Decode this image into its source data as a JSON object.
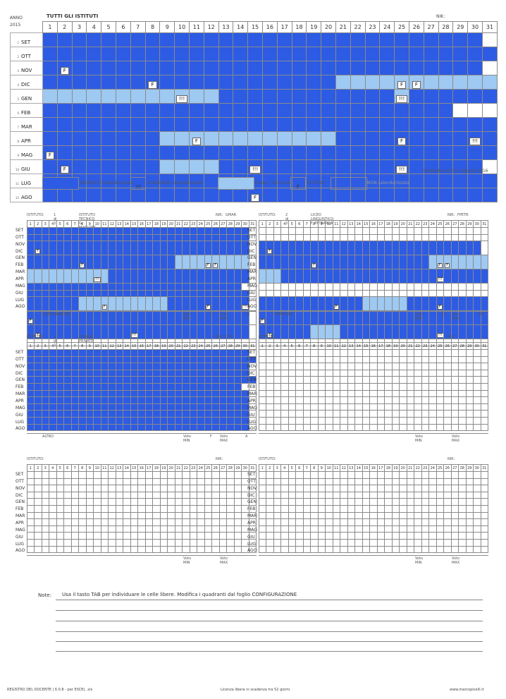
{
  "main": {
    "anno_label": "ANNO",
    "anno_year": "2015",
    "title": "TUTTI GLI ISTITUTI",
    "nik_label": "NIK:",
    "day_headers": [
      "1",
      "2",
      "3",
      "4",
      "5",
      "6",
      "7",
      "8",
      "9",
      "10",
      "11",
      "12",
      "13",
      "14",
      "15",
      "16",
      "17",
      "18",
      "19",
      "20",
      "21",
      "22",
      "23",
      "24",
      "25",
      "26",
      "27",
      "28",
      "29",
      "30",
      "31"
    ],
    "months": [
      {
        "num": "1",
        "name": "SET"
      },
      {
        "num": "2",
        "name": "OTT"
      },
      {
        "num": "3",
        "name": "NOV"
      },
      {
        "num": "4",
        "name": "DIC"
      },
      {
        "num": "5",
        "name": "GEN"
      },
      {
        "num": "6",
        "name": "FEB"
      },
      {
        "num": "7",
        "name": "MAR"
      },
      {
        "num": "8",
        "name": "APR"
      },
      {
        "num": "9",
        "name": "MAG"
      },
      {
        "num": "10",
        "name": "GIU"
      },
      {
        "num": "11",
        "name": "LUG"
      },
      {
        "num": "12",
        "name": "AGO"
      }
    ],
    "rows": [
      "1111111111111111111111111111110",
      "1111111111111111111111111111111",
      "1111111111111111111111111111110",
      "1111111111111111111122222222222",
      "2222222222221111111111112111111",
      "1111111111111111111111111111000",
      "1111111111111111111111111111111",
      "1111111122222222222211111111111",
      "1111111111111111111111111111111",
      "1111111122221111111111111111110",
      "1111111111111111111111111111111",
      "1111111111111111111111111111111"
    ],
    "marks": [
      {
        "row": 2,
        "day": 2,
        "text": "F"
      },
      {
        "row": 3,
        "day": 8,
        "text": "F"
      },
      {
        "row": 3,
        "day": 25,
        "text": "F"
      },
      {
        "row": 3,
        "day": 26,
        "text": "F"
      },
      {
        "row": 4,
        "day": 10,
        "text": "!!!"
      },
      {
        "row": 4,
        "day": 25,
        "text": "!!!"
      },
      {
        "row": 7,
        "day": 11,
        "text": "F"
      },
      {
        "row": 7,
        "day": 25,
        "text": "F"
      },
      {
        "row": 7,
        "day": 30,
        "text": "!!!"
      },
      {
        "row": 8,
        "day": 1,
        "text": "F"
      },
      {
        "row": 9,
        "day": 2,
        "text": "F"
      },
      {
        "row": 9,
        "day": 15,
        "text": "!!!"
      },
      {
        "row": 9,
        "day": 25,
        "text": "!!!"
      },
      {
        "row": 11,
        "day": 15,
        "text": "F"
      }
    ],
    "period": "Settembre 2015 / Agosto 2016"
  },
  "legend": [
    {
      "key": "INCARICO calendarizzato",
      "color": "#2d5be3",
      "mark": ""
    },
    {
      "key": "SCADENZA calendarizzata",
      "color": "#ffffff",
      "mark": "!!!"
    },
    {
      "key": "Pausa / Chiusura",
      "color": "#9ec9f2",
      "mark": ""
    },
    {
      "key": "FESTIVO",
      "color": "#ffffff",
      "mark": "F"
    },
    {
      "key": "NON calendarizzato",
      "color": "#ffffff",
      "mark": ""
    }
  ],
  "month_names": [
    "SET",
    "OTT",
    "NOV",
    "DIC",
    "GEN",
    "FEB",
    "MAR",
    "APR",
    "MAG",
    "GIU",
    "LUG",
    "AGO"
  ],
  "panels": [
    {
      "istituto_label": "ISTITUTO:",
      "index": "1 di 3",
      "name": "ISTITUTO TECNICO G. MARCONI",
      "nik_label": "NIK:",
      "nik": "GMAR",
      "period_type": "QUADRIMESTRE",
      "voto_min_label": "Voto MIN",
      "voto_min": "1",
      "voto_max_label": "Voto MAX",
      "voto_max": "10",
      "rows": [
        "1111111111111111111111111111110",
        "1111111111111111111111111111110",
        "1111111111111111111111111111110",
        "1111111111111111111122222222220",
        "2222222222211111111111111111110",
        "1111111111111111111111111111100",
        "1111111111111111111111111111110",
        "1111111222222222222111111111110",
        "1111111111111111111111111111110",
        "1111111111111111111111111111110",
        "0000000000000000000000000000000",
        "0000000000000000000000000000000"
      ],
      "marks": [
        {
          "row": 2,
          "day": 2,
          "text": "F"
        },
        {
          "row": 3,
          "day": 8,
          "text": "F"
        },
        {
          "row": 3,
          "day": 25,
          "text": "F"
        },
        {
          "row": 3,
          "day": 26,
          "text": "F"
        },
        {
          "row": 4,
          "day": 10,
          "text": "!!!"
        },
        {
          "row": 7,
          "day": 11,
          "text": "F"
        },
        {
          "row": 7,
          "day": 25,
          "text": "F"
        },
        {
          "row": 7,
          "day": 30,
          "text": "!!!"
        },
        {
          "row": 8,
          "day": 1,
          "text": "F"
        },
        {
          "row": 9,
          "day": 2,
          "text": "F"
        },
        {
          "row": 9,
          "day": 15,
          "text": "!!!"
        },
        {
          "row": 11,
          "day": 15,
          "text": "F"
        }
      ]
    },
    {
      "istituto_label": "ISTITUTO:",
      "index": "2 di 3",
      "name": "LICEO LINGUISTICO F. PETRARCA",
      "nik_label": "NIK:",
      "nik": "FPETR",
      "period_type": "SEMESTRE",
      "voto_min_label": "Voto MIN",
      "voto_min": "10",
      "voto_max_label": "Voto MAX",
      "voto_max": "100",
      "rows": [
        "0000000000000000000000000000000",
        "0000000000000000000000000000000",
        "1111111111111111111111111111110",
        "1111111111111111111111122222222",
        "2221111111111111111111111111111",
        "0000000000000000000000000000000",
        "0000000000000000000000000000000",
        "1111111111111122222211111111111",
        "1111111111111111111111111111111",
        "1111111222211111111111111111111",
        "0000000000000000000000000000000",
        "0000000000000000000000000000000"
      ],
      "marks": [
        {
          "row": 2,
          "day": 2,
          "text": "F"
        },
        {
          "row": 3,
          "day": 8,
          "text": "F"
        },
        {
          "row": 3,
          "day": 25,
          "text": "F"
        },
        {
          "row": 3,
          "day": 26,
          "text": "F"
        },
        {
          "row": 4,
          "day": 25,
          "text": "!!!"
        },
        {
          "row": 7,
          "day": 11,
          "text": "F"
        },
        {
          "row": 7,
          "day": 25,
          "text": "F"
        },
        {
          "row": 8,
          "day": 1,
          "text": "F"
        },
        {
          "row": 9,
          "day": 2,
          "text": "F"
        },
        {
          "row": 9,
          "day": 25,
          "text": "!!!"
        },
        {
          "row": 11,
          "day": 15,
          "text": "F"
        }
      ]
    },
    {
      "istituto_label": "ISTITUTO:",
      "index": "3 di 3",
      "name": "LEZIONI PRIVATE",
      "nik_label": "NIK:",
      "nik": "LPR",
      "period_type": "ALTRO",
      "voto_min_label": "Voto MIN",
      "voto_min": "F",
      "voto_max_label": "Voto MAX",
      "voto_max": "A",
      "rows": [
        "1111111111111111111111111111110",
        "1111111111111111111111111111111",
        "1111111111111111111111111111110",
        "1111111111111111111111111111110",
        "1111111111111111111111111111111",
        "1111111111111111111111111111100",
        "1111111111111111111111111111110",
        "1111111111111111111111111111110",
        "1111111111111111111111111111110",
        "1111111111111111111111111111110",
        "1111111111111111111111111111110",
        "1111111111111111111111111111110"
      ],
      "marks": []
    },
    {
      "istituto_label": "ISTITUTO:",
      "index": "",
      "name": "",
      "nik_label": "NIK:",
      "nik": "",
      "period_type": "",
      "voto_min_label": "Voto MIN",
      "voto_min": "",
      "voto_max_label": "Voto MAX",
      "voto_max": "",
      "rows": [],
      "marks": []
    },
    {
      "istituto_label": "ISTITUTO:",
      "index": "",
      "name": "",
      "nik_label": "NIK:",
      "nik": "",
      "period_type": "",
      "voto_min_label": "Voto MIN",
      "voto_min": "",
      "voto_max_label": "Voto MAX",
      "voto_max": "",
      "rows": [],
      "marks": []
    },
    {
      "istituto_label": "ISTITUTO:",
      "index": "",
      "name": "",
      "nik_label": "NIK:",
      "nik": "",
      "period_type": "",
      "voto_min_label": "Voto MIN",
      "voto_min": "",
      "voto_max_label": "Voto MAX",
      "voto_max": "",
      "rows": [],
      "marks": []
    }
  ],
  "notes": {
    "label": "Note:",
    "text": "Usa il tasto TAB per individuare le celle libere. Modifica i quadranti dal foglio CONFIGURAZIONE"
  },
  "footer": {
    "left": "REGISTRO DEL DOCENTE | 6.0.8 - per EXCEL .xls",
    "center": "Licenza libera in scadenza tra 52 giorni",
    "right": "www.marcopicelli.it"
  }
}
